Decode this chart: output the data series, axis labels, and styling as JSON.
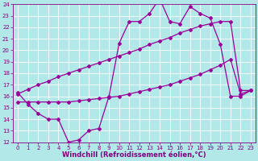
{
  "bg_color": "#b2e8e8",
  "grid_color": "#cceeee",
  "line_color": "#990099",
  "xlim_min": -0.5,
  "xlim_max": 23.5,
  "ylim_min": 12,
  "ylim_max": 24,
  "xticks": [
    0,
    1,
    2,
    3,
    4,
    5,
    6,
    7,
    8,
    9,
    10,
    11,
    12,
    13,
    14,
    15,
    16,
    17,
    18,
    19,
    20,
    21,
    22,
    23
  ],
  "yticks": [
    12,
    13,
    14,
    15,
    16,
    17,
    18,
    19,
    20,
    21,
    22,
    23,
    24
  ],
  "line1_x": [
    0,
    1,
    2,
    3,
    4,
    5,
    6,
    7,
    8,
    9,
    10,
    11,
    12,
    13,
    14,
    15,
    16,
    17,
    18,
    19,
    20,
    21,
    22,
    23
  ],
  "line1_y": [
    16.3,
    15.3,
    14.5,
    14.0,
    14.0,
    12.0,
    12.2,
    13.0,
    13.2,
    16.0,
    20.6,
    22.5,
    22.5,
    23.2,
    24.5,
    22.5,
    22.3,
    23.8,
    23.2,
    22.8,
    20.5,
    16.0,
    16.0,
    16.5
  ],
  "line2_x": [
    0,
    1,
    2,
    3,
    4,
    5,
    6,
    7,
    8,
    9,
    10,
    11,
    12,
    13,
    14,
    15,
    16,
    17,
    18,
    19,
    20,
    21,
    22,
    23
  ],
  "line2_y": [
    15.5,
    15.5,
    15.5,
    15.5,
    15.5,
    15.5,
    15.6,
    15.7,
    15.8,
    15.9,
    16.0,
    16.2,
    16.4,
    16.6,
    16.8,
    17.0,
    17.3,
    17.6,
    17.9,
    18.3,
    18.7,
    19.2,
    16.2,
    16.5
  ],
  "line3_x": [
    0,
    1,
    2,
    3,
    4,
    5,
    6,
    7,
    8,
    9,
    10,
    11,
    12,
    13,
    14,
    15,
    16,
    17,
    18,
    19,
    20,
    21,
    22,
    23
  ],
  "line3_y": [
    16.2,
    16.6,
    17.0,
    17.3,
    17.7,
    18.0,
    18.3,
    18.6,
    18.9,
    19.2,
    19.5,
    19.8,
    20.1,
    20.5,
    20.8,
    21.1,
    21.5,
    21.8,
    22.1,
    22.3,
    22.5,
    22.5,
    16.5,
    16.5
  ],
  "xlabel": "Windchill (Refroidissement éolien,°C)",
  "marker_size": 2.0,
  "line_width": 0.9,
  "font_color": "#800080",
  "tick_font_size": 5.0,
  "label_font_size": 6.0
}
